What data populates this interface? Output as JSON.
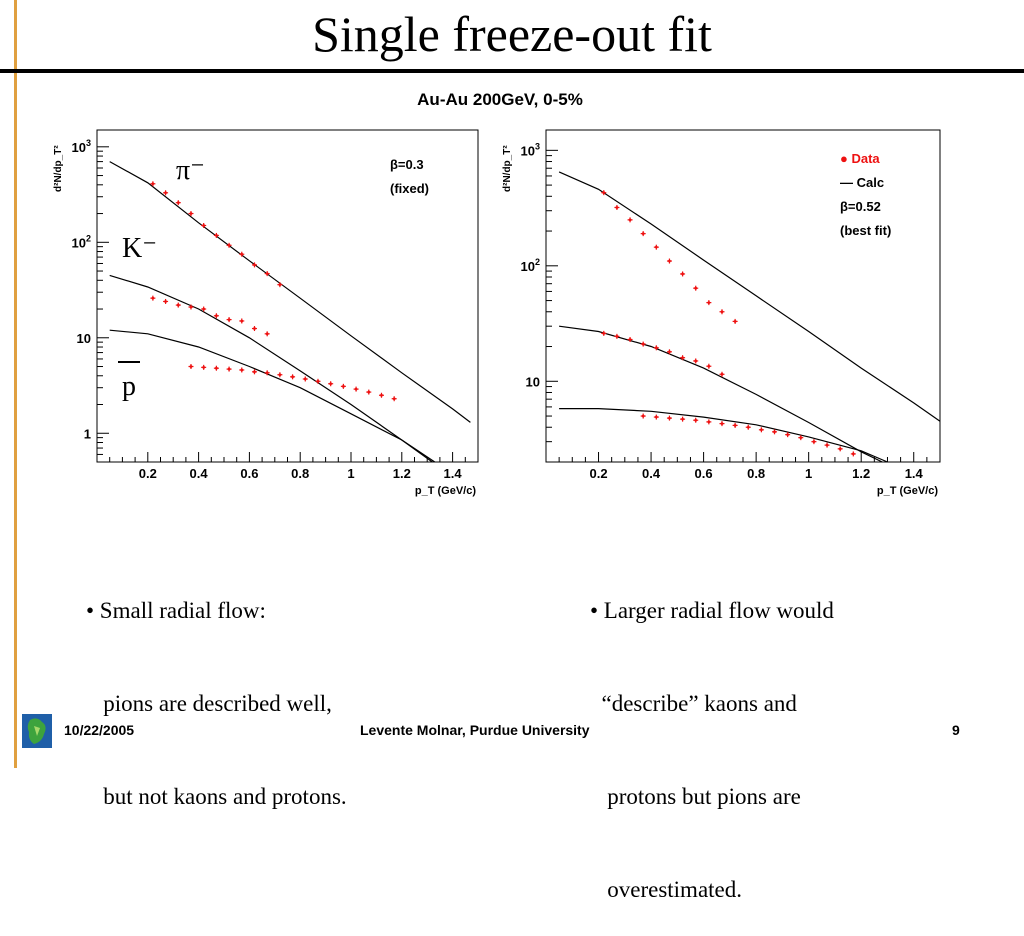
{
  "slide": {
    "title": "Single freeze-out fit",
    "subtitle": "Au-Au 200GeV, 0-5%"
  },
  "bullets": {
    "left": [
      "• Small radial flow:",
      "   pions are described well,",
      "   but not kaons and protons."
    ],
    "right": [
      "• Larger radial flow would",
      "  “describe” kaons and",
      "   protons but pions are",
      "   overestimated."
    ]
  },
  "footer": {
    "date": "10/22/2005",
    "author": "Levente Molnar, Purdue University",
    "page": "9"
  },
  "colors": {
    "data_points": "#ee1111",
    "fit_line": "#000000",
    "accent_line": "#e0a040"
  },
  "chart_data": [
    {
      "type": "scatter",
      "ylabel": "d²N/dp_T²",
      "xlabel": "p_T (GeV/c)",
      "xlim": [
        0,
        1.5
      ],
      "ylim": [
        0.5,
        1500
      ],
      "ylog": true,
      "xticks": [
        0.2,
        0.4,
        0.6,
        0.8,
        1,
        1.2,
        1.4
      ],
      "xtick_labels": [
        "0.2",
        "0.4",
        "0.6",
        "0.8",
        "1",
        "1.2",
        "1.4"
      ],
      "yticks": [
        1,
        10,
        100,
        1000
      ],
      "ytick_labels": [
        "1",
        "10",
        "10²",
        "10³"
      ],
      "annotation": [
        "β=0.3",
        "(fixed)"
      ],
      "labels": [
        "π⁻",
        "K⁻",
        "p"
      ],
      "series": [
        {
          "name": "π⁻",
          "points": [
            [
              0.22,
              410
            ],
            [
              0.27,
              330
            ],
            [
              0.32,
              260
            ],
            [
              0.37,
              200
            ],
            [
              0.42,
              150
            ],
            [
              0.47,
              118
            ],
            [
              0.52,
              93
            ],
            [
              0.57,
              75
            ],
            [
              0.62,
              58
            ],
            [
              0.67,
              47
            ],
            [
              0.72,
              36
            ]
          ],
          "fit": [
            [
              0.05,
              700
            ],
            [
              0.2,
              420
            ],
            [
              0.4,
              160
            ],
            [
              0.6,
              64
            ],
            [
              0.8,
              26
            ],
            [
              1.0,
              10.5
            ],
            [
              1.2,
              4.3
            ],
            [
              1.4,
              1.8
            ],
            [
              1.47,
              1.3
            ]
          ]
        },
        {
          "name": "K⁻",
          "points": [
            [
              0.22,
              26
            ],
            [
              0.27,
              24
            ],
            [
              0.32,
              22
            ],
            [
              0.37,
              21
            ],
            [
              0.42,
              20
            ],
            [
              0.47,
              17
            ],
            [
              0.52,
              15.5
            ],
            [
              0.57,
              15
            ],
            [
              0.62,
              12.5
            ],
            [
              0.67,
              11
            ]
          ],
          "fit": [
            [
              0.05,
              45
            ],
            [
              0.2,
              34
            ],
            [
              0.4,
              20
            ],
            [
              0.6,
              10
            ],
            [
              0.8,
              4.5
            ],
            [
              1.0,
              2.0
            ],
            [
              1.2,
              0.85
            ],
            [
              1.33,
              0.5
            ]
          ]
        },
        {
          "name": "p",
          "points": [
            [
              0.37,
              5
            ],
            [
              0.42,
              4.9
            ],
            [
              0.47,
              4.8
            ],
            [
              0.52,
              4.7
            ],
            [
              0.57,
              4.6
            ],
            [
              0.62,
              4.4
            ],
            [
              0.67,
              4.3
            ],
            [
              0.72,
              4.1
            ],
            [
              0.77,
              3.9
            ],
            [
              0.82,
              3.7
            ],
            [
              0.87,
              3.5
            ],
            [
              0.92,
              3.3
            ],
            [
              0.97,
              3.1
            ],
            [
              1.02,
              2.9
            ],
            [
              1.07,
              2.7
            ],
            [
              1.12,
              2.5
            ],
            [
              1.17,
              2.3
            ]
          ],
          "fit": [
            [
              0.05,
              12
            ],
            [
              0.2,
              11
            ],
            [
              0.4,
              8
            ],
            [
              0.6,
              5
            ],
            [
              0.8,
              3
            ],
            [
              1.0,
              1.6
            ],
            [
              1.2,
              0.85
            ],
            [
              1.32,
              0.5
            ]
          ]
        }
      ]
    },
    {
      "type": "scatter",
      "ylabel": "d²N/dp_T²",
      "xlabel": "p_T (GeV/c)",
      "xlim": [
        0,
        1.5
      ],
      "ylim": [
        2,
        1500
      ],
      "ylog": true,
      "xticks": [
        0.2,
        0.4,
        0.6,
        0.8,
        1,
        1.2,
        1.4
      ],
      "xtick_labels": [
        "0.2",
        "0.4",
        "0.6",
        "0.8",
        "1",
        "1.2",
        "1.4"
      ],
      "yticks": [
        10,
        100,
        1000
      ],
      "ytick_labels": [
        "10",
        "10²",
        "10³"
      ],
      "legend": [
        "● Data",
        "— Calc",
        "β=0.52",
        "(best fit)"
      ],
      "series": [
        {
          "name": "π⁻",
          "points": [
            [
              0.22,
              430
            ],
            [
              0.27,
              320
            ],
            [
              0.32,
              250
            ],
            [
              0.37,
              190
            ],
            [
              0.42,
              145
            ],
            [
              0.47,
              110
            ],
            [
              0.52,
              85
            ],
            [
              0.57,
              64
            ],
            [
              0.62,
              48
            ],
            [
              0.67,
              40
            ],
            [
              0.72,
              33
            ]
          ],
          "fit": [
            [
              0.05,
              650
            ],
            [
              0.2,
              460
            ],
            [
              0.4,
              230
            ],
            [
              0.6,
              112
            ],
            [
              0.8,
              55
            ],
            [
              1.0,
              27
            ],
            [
              1.2,
              13
            ],
            [
              1.4,
              6.5
            ],
            [
              1.5,
              4.5
            ]
          ]
        },
        {
          "name": "K⁻",
          "points": [
            [
              0.22,
              26
            ],
            [
              0.27,
              24.5
            ],
            [
              0.32,
              23
            ],
            [
              0.37,
              21
            ],
            [
              0.42,
              19.5
            ],
            [
              0.47,
              18
            ],
            [
              0.52,
              16
            ],
            [
              0.57,
              15
            ],
            [
              0.62,
              13.5
            ],
            [
              0.67,
              11.5
            ]
          ],
          "fit": [
            [
              0.05,
              30
            ],
            [
              0.2,
              27
            ],
            [
              0.4,
              20
            ],
            [
              0.6,
              13
            ],
            [
              0.8,
              7.7
            ],
            [
              1.0,
              4.4
            ],
            [
              1.2,
              2.45
            ],
            [
              1.28,
              2
            ]
          ]
        },
        {
          "name": "p",
          "points": [
            [
              0.37,
              5.0
            ],
            [
              0.42,
              4.9
            ],
            [
              0.47,
              4.8
            ],
            [
              0.52,
              4.7
            ],
            [
              0.57,
              4.6
            ],
            [
              0.62,
              4.45
            ],
            [
              0.67,
              4.3
            ],
            [
              0.72,
              4.15
            ],
            [
              0.77,
              4.0
            ],
            [
              0.82,
              3.8
            ],
            [
              0.87,
              3.65
            ],
            [
              0.92,
              3.45
            ],
            [
              0.97,
              3.25
            ],
            [
              1.02,
              3.0
            ],
            [
              1.07,
              2.8
            ],
            [
              1.12,
              2.6
            ],
            [
              1.17,
              2.35
            ]
          ],
          "fit": [
            [
              0.05,
              5.8
            ],
            [
              0.2,
              5.8
            ],
            [
              0.4,
              5.5
            ],
            [
              0.6,
              4.9
            ],
            [
              0.8,
              4.2
            ],
            [
              1.0,
              3.3
            ],
            [
              1.2,
              2.5
            ],
            [
              1.3,
              2.0
            ]
          ]
        }
      ]
    }
  ]
}
